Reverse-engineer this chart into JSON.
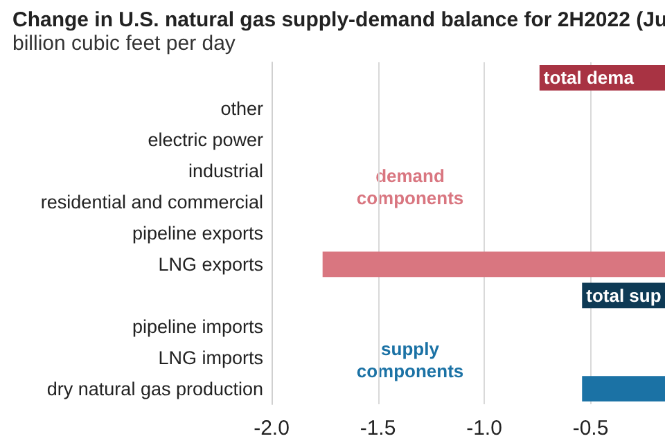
{
  "chart_data": {
    "type": "bar",
    "orientation": "horizontal",
    "title": "Change in U.S. natural gas supply-demand balance for 2H2022 (Ju",
    "subtitle": "billion cubic feet per day",
    "categories": [
      null,
      "other",
      "electric power",
      "industrial",
      "residential and commercial",
      "pipeline exports",
      "LNG exports",
      null,
      "pipeline imports",
      "LNG imports",
      "dry natural gas production"
    ],
    "values": [
      -0.74,
      null,
      null,
      null,
      null,
      null,
      -1.76,
      -0.54,
      null,
      null,
      -0.54
    ],
    "colors": [
      "#a83343",
      "#d97680",
      "#d97680",
      "#d97680",
      "#d97680",
      "#d97680",
      "#d97680",
      "#0e3a55",
      "#1b72a5",
      "#1b72a5",
      "#1b72a5"
    ],
    "value_labels": [
      "total dema",
      null,
      null,
      null,
      null,
      null,
      null,
      "total sup",
      null,
      null,
      null
    ],
    "annotations": [
      "demand components",
      "supply components"
    ],
    "xlim": [
      -2.0,
      -0.15
    ],
    "xticks": [
      {
        "value": -2.0,
        "label": "-2.0"
      },
      {
        "value": -1.5,
        "label": "-1.5"
      },
      {
        "value": -1.0,
        "label": "-1.0"
      },
      {
        "value": -0.5,
        "label": "-0.5"
      }
    ],
    "grid": "x"
  }
}
